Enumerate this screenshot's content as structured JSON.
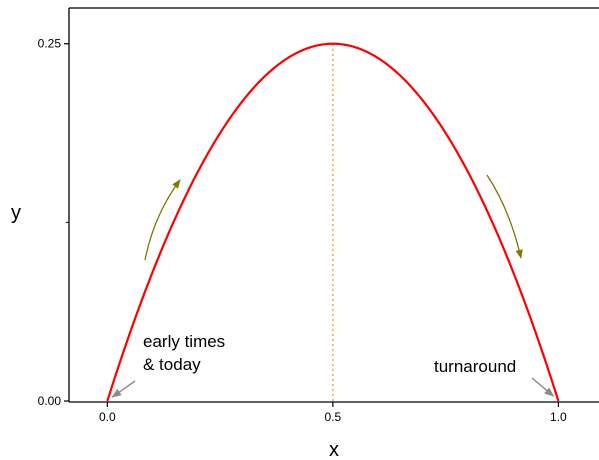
{
  "chart_data": {
    "type": "line",
    "xlabel": "x",
    "ylabel": "y",
    "xlim": [
      -0.085,
      1.09
    ],
    "ylim": [
      -0.0007,
      0.275
    ],
    "x_ticks": [
      {
        "value": 0.0,
        "label": "0.0"
      },
      {
        "value": 0.5,
        "label": "0.5"
      },
      {
        "value": 1.0,
        "label": "1.0"
      }
    ],
    "y_ticks": [
      {
        "value": 0.0,
        "label": "0.00"
      },
      {
        "value": 0.25,
        "label": "0.25"
      }
    ],
    "y_minor_ticks": [
      0.125
    ],
    "series": [
      {
        "color": "#ff0000",
        "x": [
          0.0,
          0.05,
          0.1,
          0.15,
          0.2,
          0.25,
          0.3,
          0.35,
          0.4,
          0.45,
          0.5,
          0.55,
          0.6,
          0.65,
          0.7,
          0.75,
          0.8,
          0.85,
          0.9,
          0.95,
          1.0
        ],
        "y": [
          0.0,
          0.0475,
          0.09,
          0.1275,
          0.16,
          0.1875,
          0.21,
          0.2275,
          0.24,
          0.2475,
          0.25,
          0.2475,
          0.24,
          0.2275,
          0.21,
          0.1875,
          0.16,
          0.1275,
          0.09,
          0.0475,
          0.0
        ]
      }
    ],
    "reference_line": {
      "x": 0.5,
      "y_from": 0.0,
      "y_to": 0.25,
      "color": "#ff9a3c",
      "style": "dotted"
    },
    "annotations": [
      {
        "id": "early",
        "lines": [
          "early times",
          "& today"
        ],
        "arrow_to": [
          0.0,
          0.0
        ],
        "color": "#000000",
        "arrow_color": "#8a8a8a"
      },
      {
        "id": "turnaround",
        "lines": [
          "turnaround"
        ],
        "arrow_to": [
          1.0,
          0.0
        ],
        "color": "#000000",
        "arrow_color": "#8a8a8a"
      }
    ],
    "direction_arrows": {
      "color": "#7a7a00",
      "count": 2
    },
    "grid": false,
    "legend": "none"
  }
}
